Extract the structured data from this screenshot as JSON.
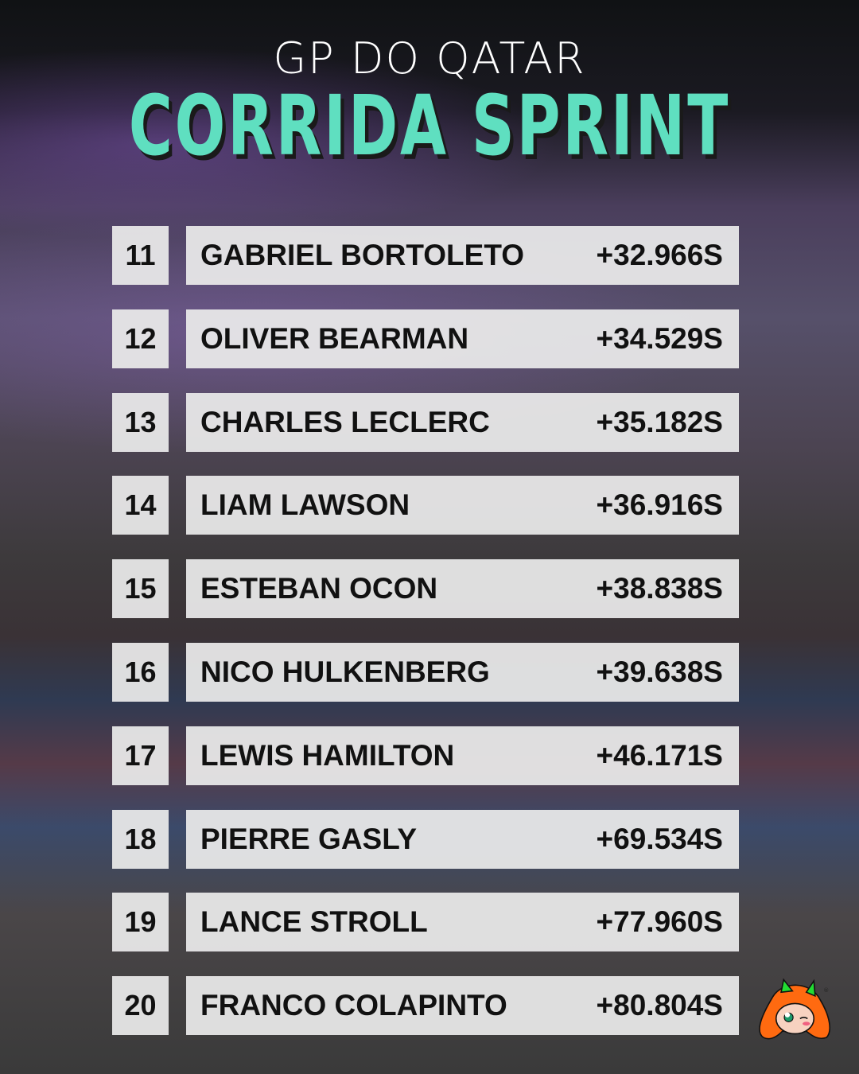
{
  "header": {
    "subtitle": "GP DO QATAR",
    "title": "CORRIDA SPRINT"
  },
  "accent_color": "#5fdfc0",
  "results": [
    {
      "pos": "11",
      "driver": "GABRIEL BORTOLETO",
      "gap": "+32.966S"
    },
    {
      "pos": "12",
      "driver": "OLIVER BEARMAN",
      "gap": "+34.529S"
    },
    {
      "pos": "13",
      "driver": "CHARLES LECLERC",
      "gap": "+35.182S"
    },
    {
      "pos": "14",
      "driver": "LIAM LAWSON",
      "gap": "+36.916S"
    },
    {
      "pos": "15",
      "driver": "ESTEBAN OCON",
      "gap": "+38.838S"
    },
    {
      "pos": "16",
      "driver": "NICO HULKENBERG",
      "gap": "+39.638S"
    },
    {
      "pos": "17",
      "driver": "LEWIS HAMILTON",
      "gap": "+46.171S"
    },
    {
      "pos": "18",
      "driver": "PIERRE GASLY",
      "gap": "+69.534S"
    },
    {
      "pos": "19",
      "driver": "LANCE STROLL",
      "gap": "+77.960S"
    },
    {
      "pos": "20",
      "driver": "FRANCO COLAPINTO",
      "gap": "+80.804S"
    }
  ]
}
